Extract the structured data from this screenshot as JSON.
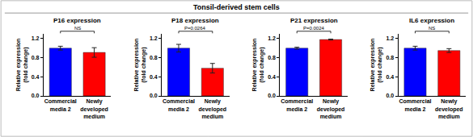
{
  "title": "Tonsil-derived stem cells",
  "chart_data": [
    {
      "type": "bar",
      "title": "P16 expression",
      "categories": [
        "Commercial media 2",
        "Newly developed medium"
      ],
      "values": [
        1.0,
        0.91
      ],
      "errors": [
        0.04,
        0.1
      ],
      "colors": [
        "#0000ff",
        "#ff0000"
      ],
      "ylabel": "Relative expression (fold change)",
      "ylim": [
        0,
        1.3
      ],
      "yticks": [
        {
          "value": 0,
          "label": "0.0"
        },
        {
          "value": 0.4,
          "label": "0.4"
        },
        {
          "value": 0.8,
          "label": "0.8"
        },
        {
          "value": 1.2,
          "label": "1.2"
        }
      ],
      "grid": false,
      "annotations": [
        "NS"
      ]
    },
    {
      "type": "bar",
      "title": "P18 expression",
      "categories": [
        "Commercial media 2",
        "Newly developed medium"
      ],
      "values": [
        1.0,
        0.58
      ],
      "errors": [
        0.08,
        0.1
      ],
      "colors": [
        "#0000ff",
        "#ff0000"
      ],
      "ylabel": "Relative expression (fold change)",
      "ylim": [
        0,
        1.3
      ],
      "yticks": [
        {
          "value": 0,
          "label": "0.0"
        },
        {
          "value": 0.4,
          "label": "0.4"
        },
        {
          "value": 0.8,
          "label": "0.8"
        },
        {
          "value": 1.2,
          "label": "1.2"
        }
      ],
      "grid": false,
      "annotations": [
        "P=0.0264"
      ]
    },
    {
      "type": "bar",
      "title": "P21 expression",
      "categories": [
        "Commercial media 2",
        "Newly developed medium"
      ],
      "values": [
        1.0,
        1.18
      ],
      "errors": [
        0.02,
        0.01
      ],
      "colors": [
        "#0000ff",
        "#ff0000"
      ],
      "ylabel": "Relative expression (fold change)",
      "ylim": [
        0,
        1.3
      ],
      "yticks": [
        {
          "value": 0,
          "label": "0.0"
        },
        {
          "value": 0.4,
          "label": "0.4"
        },
        {
          "value": 0.8,
          "label": "0.8"
        },
        {
          "value": 1.2,
          "label": "1.2"
        }
      ],
      "grid": false,
      "annotations": [
        "P=0.0024"
      ]
    },
    {
      "type": "bar",
      "title": "IL6 expression",
      "categories": [
        "Commercial media 2",
        "Newly developed medium"
      ],
      "values": [
        1.0,
        0.95
      ],
      "errors": [
        0.04,
        0.04
      ],
      "colors": [
        "#0000ff",
        "#ff0000"
      ],
      "ylabel": "Relative expression (fold change)",
      "ylim": [
        0,
        1.3
      ],
      "yticks": [
        {
          "value": 0,
          "label": "0.0"
        },
        {
          "value": 0.4,
          "label": "0.4"
        },
        {
          "value": 0.8,
          "label": "0.8"
        },
        {
          "value": 1.2,
          "label": "1.2"
        }
      ],
      "grid": false,
      "annotations": [
        "NS"
      ]
    }
  ]
}
